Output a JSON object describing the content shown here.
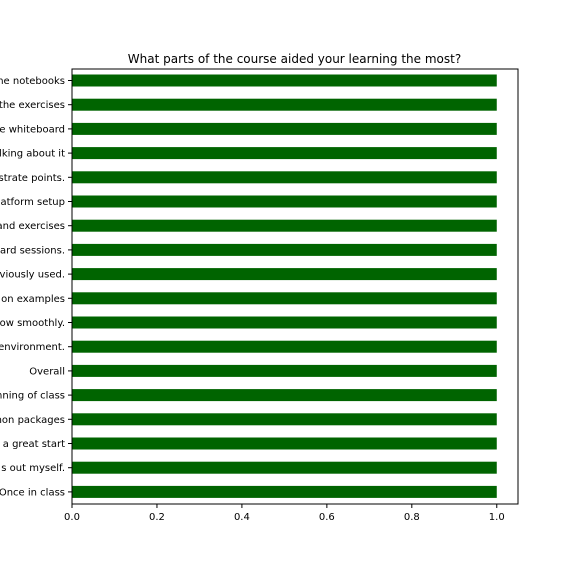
{
  "chart_data": {
    "type": "bar",
    "orientation": "horizontal",
    "title": "What parts of the course aided your learning the most?",
    "xlabel": "",
    "ylabel": "",
    "categories": [
      "he notebooks",
      "the exercises",
      "e whiteboard",
      "lking about it",
      "strate points.",
      "latform setup",
      "and exercises",
      "ard sessions.",
      "viously used.",
      "on examples",
      "ow smoothly.",
      "environment.",
      "Overall",
      "nning of class",
      "hon packages",
      "a great start",
      "s out myself.",
      "Once in class"
    ],
    "values": [
      1,
      1,
      1,
      1,
      1,
      1,
      1,
      1,
      1,
      1,
      1,
      1,
      1,
      1,
      1,
      1,
      1,
      1
    ],
    "xlim": [
      0,
      1.05
    ],
    "xticks": [
      0.0,
      0.2,
      0.4,
      0.6,
      0.8,
      1.0
    ],
    "xtick_labels": [
      "0.0",
      "0.2",
      "0.4",
      "0.6",
      "0.8",
      "1.0"
    ],
    "bar_color": "#006400",
    "grid": false,
    "legend": "none"
  }
}
